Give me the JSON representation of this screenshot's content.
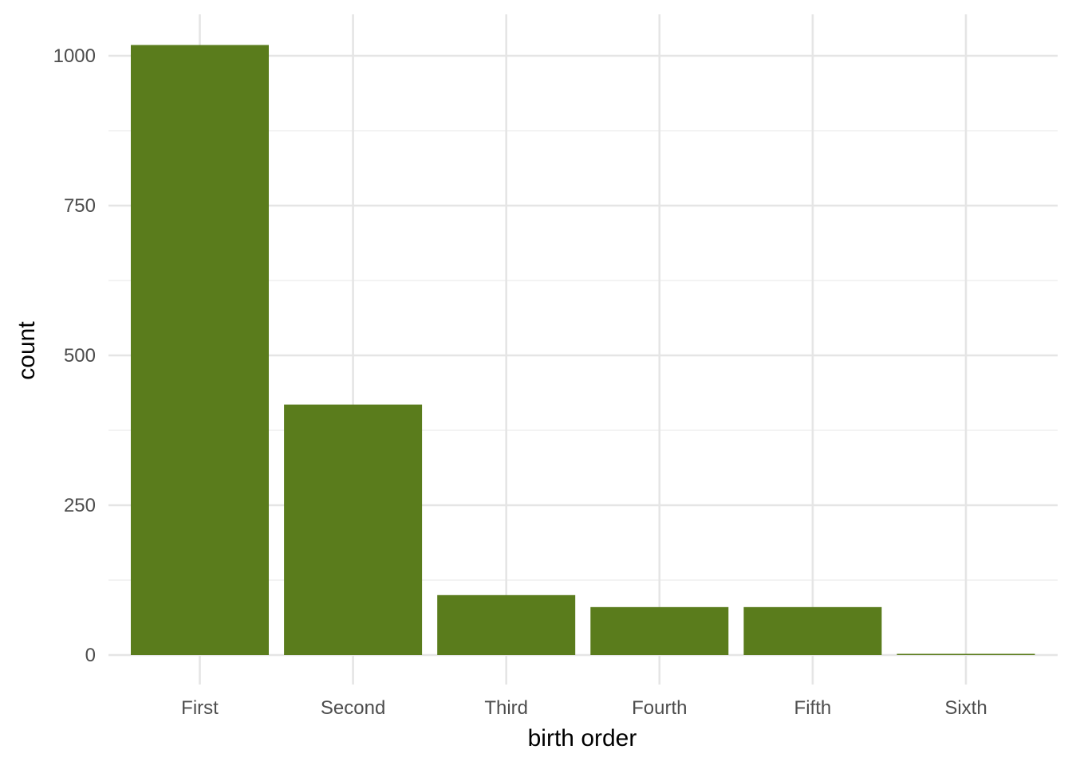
{
  "chart_data": {
    "type": "bar",
    "title": "",
    "xlabel": "birth order",
    "ylabel": "count",
    "categories": [
      "First",
      "Second",
      "Third",
      "Fourth",
      "Fifth",
      "Sixth"
    ],
    "values": [
      1018,
      418,
      100,
      80,
      80,
      2
    ],
    "ylim": [
      0,
      1070
    ],
    "yticks": [
      0,
      250,
      500,
      750,
      1000
    ],
    "grid": true,
    "legend": "none",
    "bar_color": "#5a7c1c",
    "background": "#ffffff"
  }
}
